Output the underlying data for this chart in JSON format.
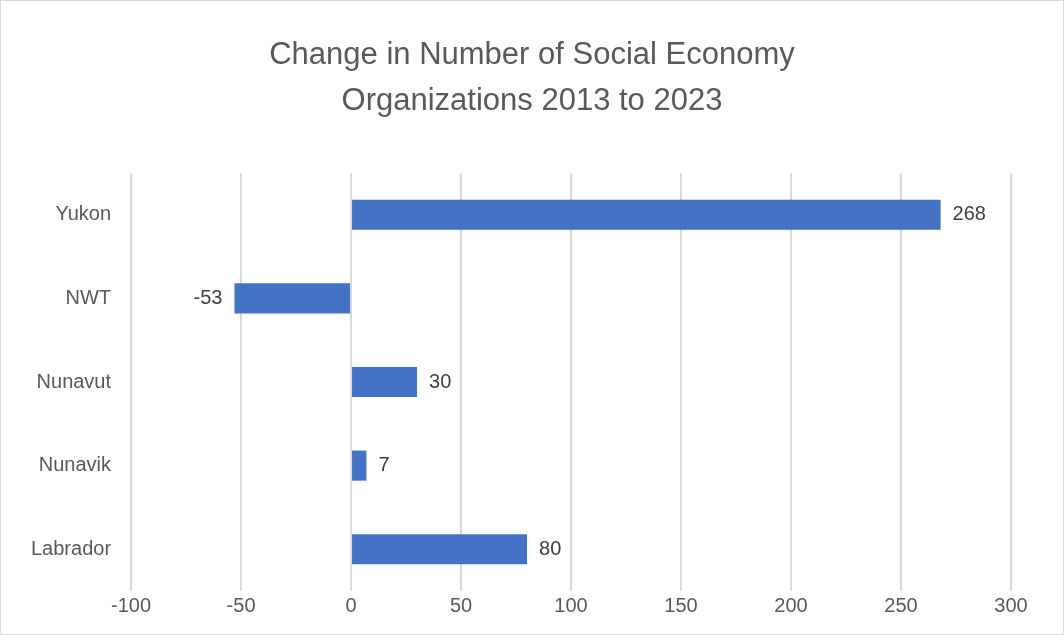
{
  "chart_data": {
    "type": "bar",
    "orientation": "horizontal",
    "title": "Change in Number of Social Economy Organizations 2013 to 2023",
    "categories": [
      "Yukon",
      "NWT",
      "Nunavut",
      "Nunavik",
      "Labrador"
    ],
    "values": [
      268,
      -53,
      30,
      7,
      80
    ],
    "color": "#4472c4",
    "xlim": [
      -100,
      300
    ],
    "xticks": [
      -100,
      -50,
      0,
      50,
      100,
      150,
      200,
      250,
      300
    ],
    "grid": "x",
    "data_labels": true
  }
}
